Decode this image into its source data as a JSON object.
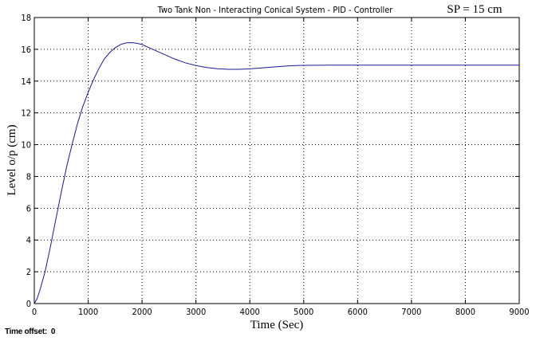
{
  "chart_data": {
    "type": "line",
    "title": "Two Tank Non - Interacting Conical System - PID - Controller",
    "annotation": "SP = 15 cm",
    "xlabel": "Time (Sec)",
    "ylabel": "Level o/p (cm)",
    "xlim": [
      0,
      9000
    ],
    "ylim": [
      0,
      18
    ],
    "xticks": [
      0,
      1000,
      2000,
      3000,
      4000,
      5000,
      6000,
      7000,
      8000,
      9000
    ],
    "yticks": [
      0,
      2,
      4,
      6,
      8,
      10,
      12,
      14,
      16,
      18
    ],
    "grid": true,
    "series": [
      {
        "name": "level",
        "color": "#1a1a8c",
        "x": [
          0,
          50,
          100,
          200,
          300,
          400,
          500,
          600,
          700,
          800,
          900,
          1000,
          1100,
          1200,
          1300,
          1400,
          1500,
          1600,
          1700,
          1800,
          1900,
          2000,
          2200,
          2400,
          2600,
          2800,
          3000,
          3200,
          3400,
          3600,
          3800,
          4000,
          4200,
          4400,
          4600,
          4800,
          5000,
          5500,
          6000,
          7000,
          8000,
          9000
        ],
        "y": [
          0,
          0.3,
          0.8,
          2.0,
          3.6,
          5.3,
          7.0,
          8.6,
          10.0,
          11.3,
          12.4,
          13.3,
          14.1,
          14.8,
          15.4,
          15.8,
          16.1,
          16.3,
          16.4,
          16.42,
          16.38,
          16.3,
          16.0,
          15.7,
          15.4,
          15.15,
          14.98,
          14.85,
          14.78,
          14.74,
          14.74,
          14.77,
          14.82,
          14.88,
          14.93,
          14.97,
          14.99,
          15.0,
          15.0,
          15.0,
          15.0,
          15.0
        ]
      }
    ]
  },
  "footer": {
    "time_offset_label": "Time offset:",
    "time_offset_value": "0"
  }
}
